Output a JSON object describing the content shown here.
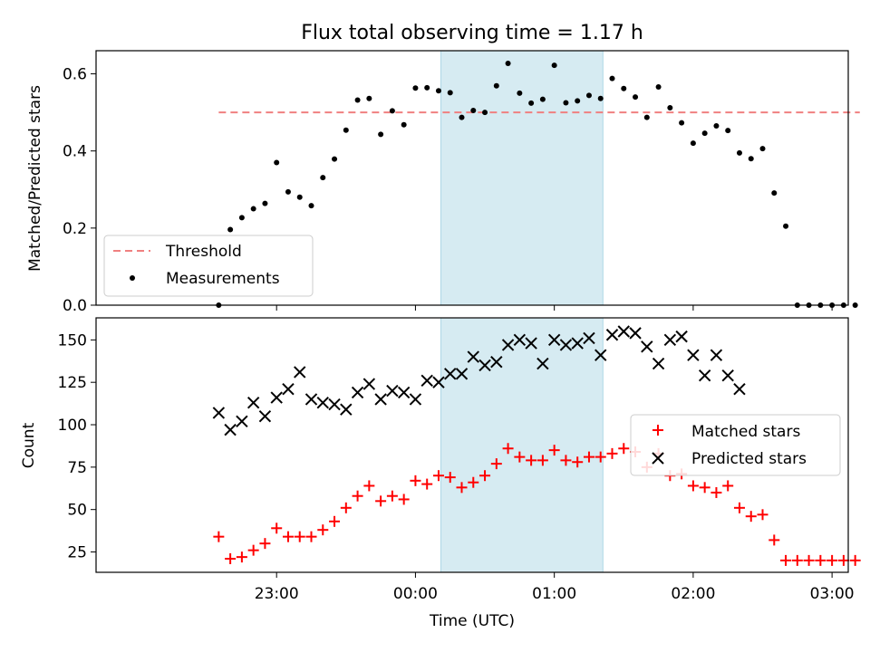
{
  "chart_data": [
    {
      "type": "scatter",
      "title": "Flux total observing time = 1.17 h",
      "xlabel": "",
      "ylabel": "Matched/Predicted stars",
      "ylim": [
        0,
        0.66
      ],
      "yticks": [
        0.0,
        0.2,
        0.4,
        0.6
      ],
      "ytick_labels": [
        "0.0",
        "0.2",
        "0.4",
        "0.6"
      ],
      "grid": false,
      "legend_position": "lower-left",
      "shaded_span": {
        "from": "00:11",
        "to": "01:21",
        "color": "#add8e6"
      },
      "threshold": {
        "name": "Threshold",
        "value": 0.5,
        "x_start": "22:35",
        "x_end": "03:12",
        "color": "#f08080"
      },
      "series": [
        {
          "name": "Measurements",
          "marker": "dot",
          "color": "#000000",
          "x": [
            "22:35",
            "22:40",
            "22:45",
            "22:50",
            "22:55",
            "23:00",
            "23:05",
            "23:10",
            "23:15",
            "23:20",
            "23:25",
            "23:30",
            "23:35",
            "23:40",
            "23:45",
            "23:50",
            "23:55",
            "00:00",
            "00:05",
            "00:10",
            "00:15",
            "00:20",
            "00:25",
            "00:30",
            "00:35",
            "00:40",
            "00:45",
            "00:50",
            "00:55",
            "01:00",
            "01:05",
            "01:10",
            "01:15",
            "01:20",
            "01:25",
            "01:30",
            "01:35",
            "01:40",
            "01:45",
            "01:50",
            "01:55",
            "02:00",
            "02:05",
            "02:10",
            "02:15",
            "02:20",
            "02:25",
            "02:30",
            "02:35",
            "02:40",
            "02:45",
            "02:50",
            "02:55",
            "03:00",
            "03:05",
            "03:10"
          ],
          "y": [
            0.0,
            0.196,
            0.227,
            0.25,
            0.264,
            0.37,
            0.294,
            0.28,
            0.258,
            0.331,
            0.379,
            0.454,
            0.532,
            0.536,
            0.443,
            0.504,
            0.468,
            0.563,
            0.564,
            0.556,
            0.551,
            0.487,
            0.505,
            0.5,
            0.569,
            0.627,
            0.55,
            0.524,
            0.534,
            0.622,
            0.525,
            0.53,
            0.544,
            0.536,
            0.588,
            0.562,
            0.54,
            0.487,
            0.566,
            0.512,
            0.473,
            0.42,
            0.446,
            0.465,
            0.453,
            0.395,
            0.38,
            0.406,
            0.291,
            0.205,
            0.0,
            0.0,
            0.0,
            0.0,
            0.0,
            0.0
          ]
        }
      ]
    },
    {
      "type": "scatter",
      "title": "",
      "xlabel": "Time (UTC)",
      "ylabel": "Count",
      "ylim": [
        13,
        163
      ],
      "yticks": [
        25,
        50,
        75,
        100,
        125,
        150
      ],
      "ytick_labels": [
        "25",
        "50",
        "75",
        "100",
        "125",
        "150"
      ],
      "xticks": [
        "23:00",
        "00:00",
        "01:00",
        "02:00",
        "03:00"
      ],
      "grid": false,
      "legend_position": "center-right",
      "shaded_span": {
        "from": "00:11",
        "to": "01:21",
        "color": "#add8e6"
      },
      "series": [
        {
          "name": "Matched stars",
          "marker": "plus",
          "color": "#ff0000",
          "x": [
            "22:35",
            "22:40",
            "22:45",
            "22:50",
            "22:55",
            "23:00",
            "23:05",
            "23:10",
            "23:15",
            "23:20",
            "23:25",
            "23:30",
            "23:35",
            "23:40",
            "23:45",
            "23:50",
            "23:55",
            "00:00",
            "00:05",
            "00:10",
            "00:15",
            "00:20",
            "00:25",
            "00:30",
            "00:35",
            "00:40",
            "00:45",
            "00:50",
            "00:55",
            "01:00",
            "01:05",
            "01:10",
            "01:15",
            "01:20",
            "01:25",
            "01:30",
            "01:35",
            "01:40",
            "01:45",
            "01:50",
            "01:55",
            "02:00",
            "02:05",
            "02:10",
            "02:15",
            "02:20",
            "02:25",
            "02:30",
            "02:35",
            "02:40",
            "02:45",
            "02:50",
            "02:55",
            "03:00",
            "03:05",
            "03:10"
          ],
          "y": [
            34,
            21,
            22,
            26,
            30,
            39,
            34,
            34,
            34,
            38,
            43,
            51,
            58,
            64,
            55,
            58,
            56,
            67,
            65,
            70,
            69,
            63,
            66,
            70,
            77,
            86,
            81,
            79,
            79,
            85,
            79,
            78,
            81,
            81,
            83,
            86,
            84,
            75,
            83,
            70,
            71,
            64,
            63,
            60,
            64,
            51,
            46,
            47,
            32,
            20,
            20,
            20,
            20,
            20,
            20,
            20
          ]
        },
        {
          "name": "Predicted stars",
          "marker": "x",
          "color": "#000000",
          "x": [
            "22:35",
            "22:40",
            "22:45",
            "22:50",
            "22:55",
            "23:00",
            "23:05",
            "23:10",
            "23:15",
            "23:20",
            "23:25",
            "23:30",
            "23:35",
            "23:40",
            "23:45",
            "23:50",
            "23:55",
            "00:00",
            "00:05",
            "00:10",
            "00:15",
            "00:20",
            "00:25",
            "00:30",
            "00:35",
            "00:40",
            "00:45",
            "00:50",
            "00:55",
            "01:00",
            "01:05",
            "01:10",
            "01:15",
            "01:20",
            "01:25",
            "01:30",
            "01:35",
            "01:40",
            "01:45",
            "01:50",
            "01:55",
            "02:00",
            "02:05",
            "02:10",
            "02:15",
            "02:20"
          ],
          "y": [
            107,
            97,
            102,
            113,
            105,
            116,
            121,
            131,
            115,
            113,
            112,
            109,
            119,
            124,
            115,
            120,
            119,
            115,
            126,
            125,
            130,
            130,
            140,
            135,
            137,
            147,
            150,
            148,
            136,
            150,
            147,
            148,
            151,
            141,
            153,
            155,
            154,
            146,
            136,
            150,
            152,
            141,
            129,
            141,
            129,
            121
          ]
        }
      ]
    }
  ]
}
